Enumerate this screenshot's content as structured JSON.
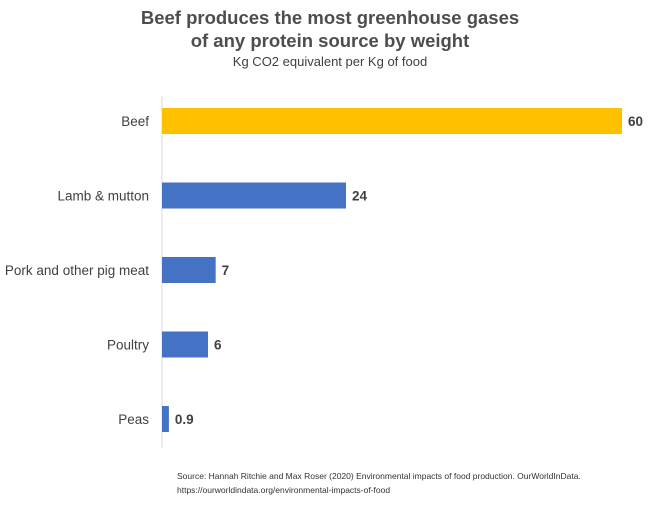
{
  "header": {
    "title_line1": "Beef produces the most greenhouse gases",
    "title_line2": "of any protein source by weight",
    "subtitle": "Kg CO2 equivalent per Kg of food"
  },
  "chart_data": {
    "type": "bar",
    "orientation": "horizontal",
    "title": "Beef produces the most greenhouse gases of any protein source by weight",
    "subtitle": "Kg CO2 equivalent per Kg of food",
    "categories": [
      "Beef",
      "Lamb & mutton",
      "Pork and other pig meat",
      "Poultry",
      "Peas"
    ],
    "values": [
      60,
      24,
      7,
      6,
      0.9
    ],
    "value_labels": [
      "60",
      "24",
      "7",
      "6",
      "0.9"
    ],
    "xlim": [
      0,
      60
    ],
    "grid": false,
    "legend": "none",
    "colors": {
      "highlight": "#FFC000",
      "default": "#4472C4"
    },
    "highlight_index": 0
  },
  "footer": {
    "source_line1": "Source: Hannah Ritchie and Max Roser (2020) Environmental impacts of food production. OurWorldInData.",
    "source_line2": "https://ourworldindata.org/environmental-impacts-of-food"
  }
}
